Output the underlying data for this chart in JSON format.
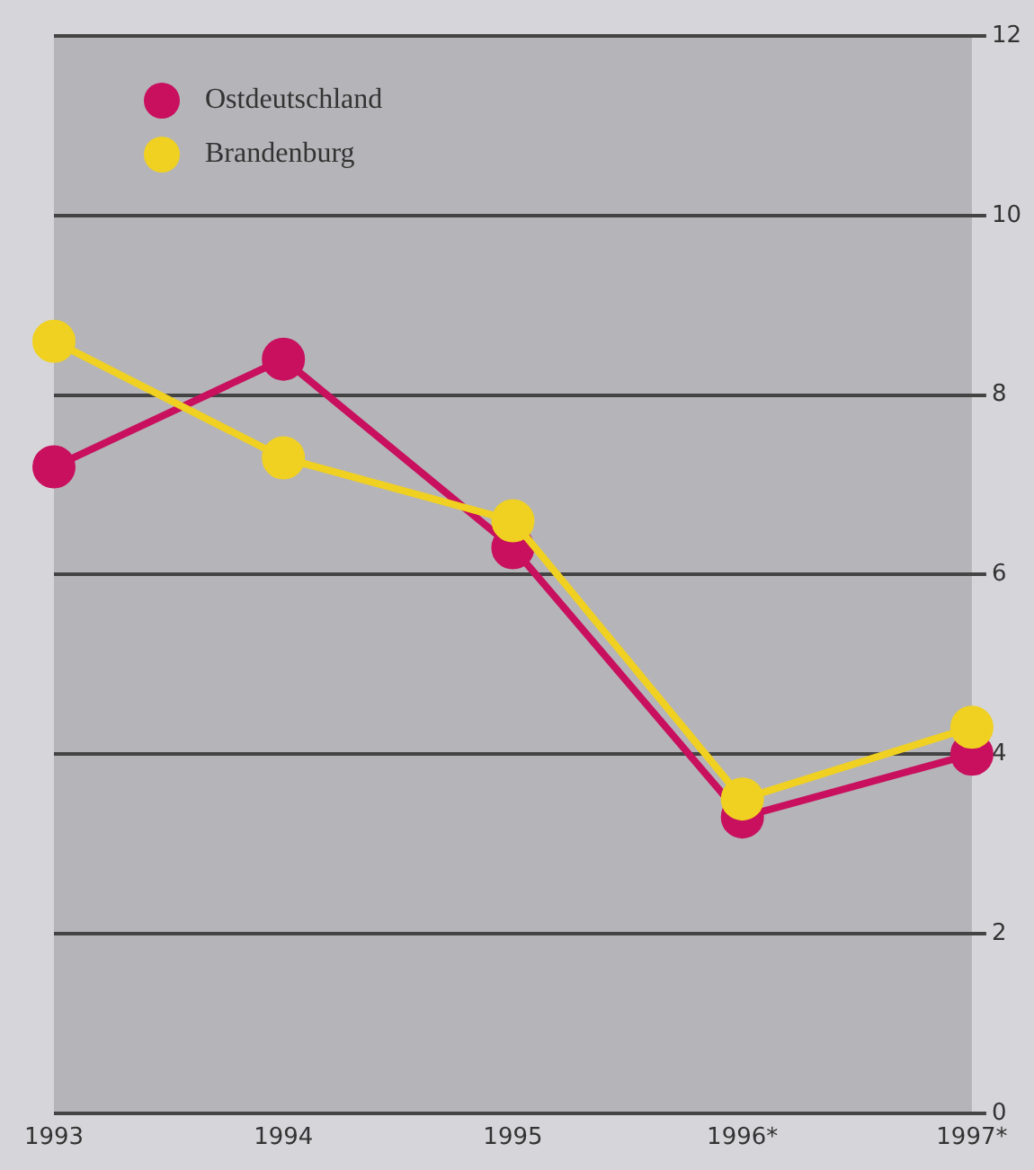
{
  "chart_data": {
    "type": "line",
    "categories": [
      "1993",
      "1994",
      "1995",
      "1996*",
      "1997*"
    ],
    "series": [
      {
        "name": "Ostdeutschland",
        "color": "#c8105e",
        "values": [
          7.2,
          8.4,
          6.3,
          3.3,
          4.0
        ]
      },
      {
        "name": "Brandenburg",
        "color": "#f0d020",
        "values": [
          8.6,
          7.3,
          6.6,
          3.5,
          4.3
        ]
      }
    ],
    "ylim": [
      0,
      12
    ],
    "yticks": [
      0,
      2,
      4,
      6,
      8,
      10,
      12
    ],
    "grid": "y",
    "legend": "top left",
    "marker": "circle",
    "line_style": "solid"
  }
}
